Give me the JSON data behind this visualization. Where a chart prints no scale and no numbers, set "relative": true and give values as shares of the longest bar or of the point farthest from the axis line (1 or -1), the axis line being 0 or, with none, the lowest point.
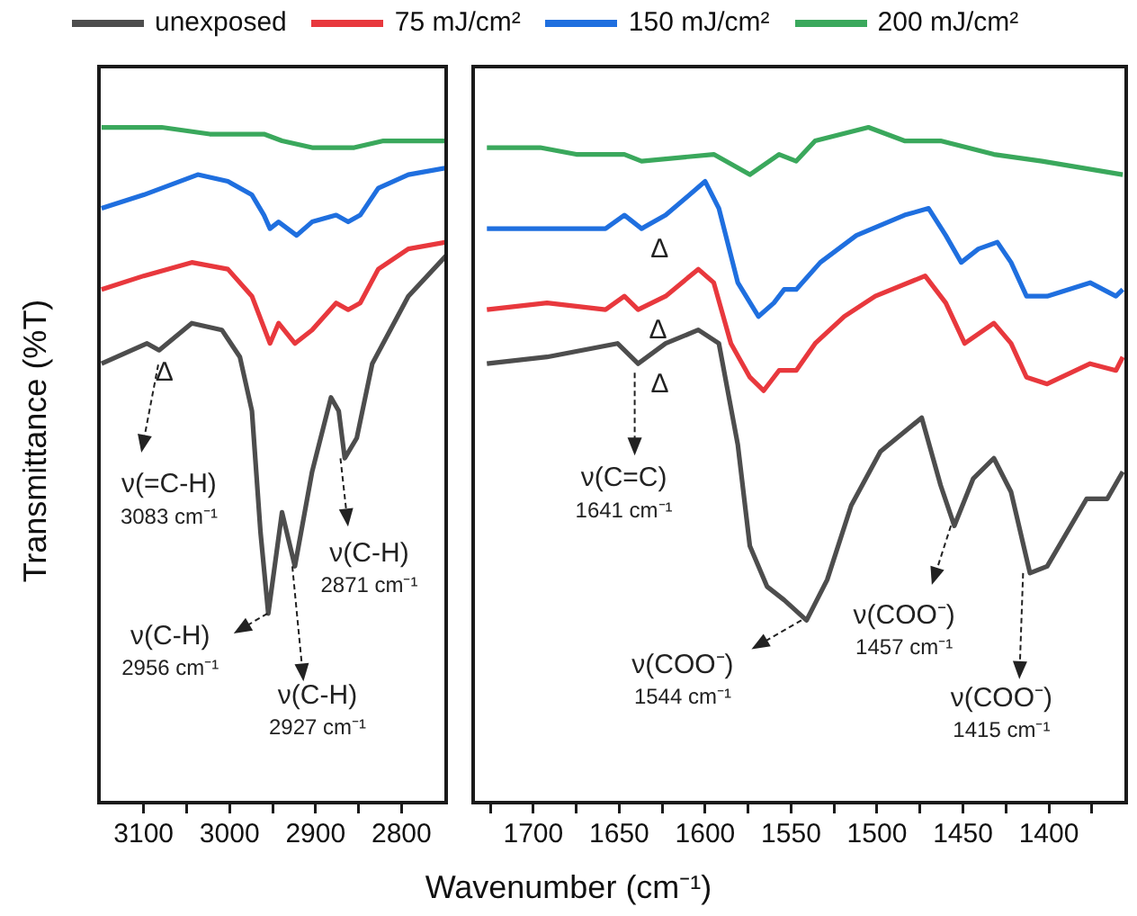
{
  "chart_data": [
    {
      "type": "line",
      "relative": true,
      "ylabel": "Transmittance (%T)",
      "xlabel": "Wavenumber (cm⁻¹)",
      "legend": "top",
      "tick_labels": "x",
      "grid": false,
      "marker": "none",
      "xlim": [
        3152,
        2748
      ],
      "xticks": [
        3100,
        {
          "value": 3050,
          "label": null
        },
        3000,
        {
          "value": 2950,
          "label": null
        },
        2900,
        {
          "value": 2850,
          "label": null
        },
        2800
      ],
      "series": [
        {
          "name": "unexposed",
          "color": "#4d4d4d",
          "x": [
            3149,
            3096,
            3082,
            3044,
            3009,
            2988,
            2974,
            2964,
            2955,
            2939,
            2924,
            2904,
            2882,
            2873,
            2866,
            2852,
            2834,
            2792,
            2748
          ],
          "values": [
            0.65,
            0.68,
            0.67,
            0.71,
            0.7,
            0.66,
            0.58,
            0.4,
            0.28,
            0.43,
            0.35,
            0.49,
            0.6,
            0.58,
            0.51,
            0.54,
            0.65,
            0.75,
            0.81
          ]
        },
        {
          "name": "75 mJ/cm²",
          "color": "#e8383d",
          "x": [
            3149,
            3100,
            3044,
            3002,
            2974,
            2953,
            2943,
            2924,
            2904,
            2876,
            2862,
            2848,
            2827,
            2792,
            2748
          ],
          "values": [
            0.76,
            0.78,
            0.8,
            0.79,
            0.75,
            0.68,
            0.71,
            0.68,
            0.7,
            0.74,
            0.73,
            0.74,
            0.79,
            0.82,
            0.83
          ]
        },
        {
          "name": "150 mJ/cm²",
          "color": "#1f6fdf",
          "x": [
            3149,
            3100,
            3037,
            3002,
            2974,
            2960,
            2953,
            2943,
            2922,
            2904,
            2876,
            2862,
            2848,
            2827,
            2792,
            2748
          ],
          "values": [
            0.88,
            0.9,
            0.93,
            0.92,
            0.9,
            0.87,
            0.85,
            0.86,
            0.84,
            0.86,
            0.87,
            0.86,
            0.87,
            0.91,
            0.93,
            0.94
          ]
        },
        {
          "name": "200 mJ/cm²",
          "color": "#3aa85c",
          "x": [
            3149,
            3079,
            3023,
            2960,
            2939,
            2904,
            2883,
            2855,
            2821,
            2748
          ],
          "values": [
            1.0,
            1.0,
            0.99,
            0.99,
            0.98,
            0.97,
            0.97,
            0.97,
            0.98,
            0.98
          ]
        }
      ],
      "annotations": [
        {
          "text": "Δ",
          "x": 3082,
          "y": 0.67
        },
        {
          "text": "ν(=C-H)\n3083 cm⁻¹",
          "x": 3083,
          "y": 0.67
        },
        {
          "text": "ν(C-H)\n2956 cm⁻¹",
          "x": 2956,
          "y": 0.28
        },
        {
          "text": "ν(C-H)\n2927 cm⁻¹",
          "x": 2927,
          "y": 0.35
        },
        {
          "text": "ν(C-H)\n2871 cm⁻¹",
          "x": 2871,
          "y": 0.51
        }
      ]
    },
    {
      "type": "line",
      "relative": true,
      "tick_labels": "x",
      "grid": false,
      "marker": "none",
      "xlim": [
        1735,
        1355
      ],
      "xticks": [
        {
          "value": 1725,
          "label": null
        },
        1700,
        {
          "value": 1675,
          "label": null
        },
        1650,
        {
          "value": 1625,
          "label": null
        },
        1600,
        {
          "value": 1575,
          "label": null
        },
        1550,
        {
          "value": 1525,
          "label": null
        },
        1500,
        {
          "value": 1475,
          "label": null
        },
        1450,
        {
          "value": 1425,
          "label": null
        },
        1400,
        {
          "value": 1375,
          "label": null
        }
      ],
      "series": [
        {
          "color": "#4d4d4d",
          "x": [
            1727,
            1692,
            1651,
            1639,
            1623,
            1604,
            1592,
            1581,
            1574,
            1564,
            1554,
            1541,
            1529,
            1515,
            1498,
            1474,
            1463,
            1455,
            1444,
            1432,
            1422,
            1411,
            1401,
            1378,
            1366,
            1357
          ],
          "values": [
            0.65,
            0.66,
            0.68,
            0.65,
            0.68,
            0.7,
            0.68,
            0.53,
            0.38,
            0.32,
            0.3,
            0.27,
            0.33,
            0.44,
            0.52,
            0.57,
            0.47,
            0.41,
            0.48,
            0.51,
            0.46,
            0.34,
            0.35,
            0.45,
            0.45,
            0.49
          ]
        },
        {
          "color": "#e8383d",
          "x": [
            1727,
            1692,
            1658,
            1647,
            1639,
            1623,
            1604,
            1595,
            1585,
            1574,
            1566,
            1557,
            1547,
            1536,
            1519,
            1501,
            1472,
            1460,
            1449,
            1432,
            1422,
            1413,
            1401,
            1376,
            1361,
            1357
          ],
          "values": [
            0.73,
            0.74,
            0.73,
            0.75,
            0.73,
            0.75,
            0.79,
            0.77,
            0.68,
            0.63,
            0.61,
            0.64,
            0.64,
            0.68,
            0.72,
            0.75,
            0.78,
            0.74,
            0.68,
            0.71,
            0.68,
            0.63,
            0.62,
            0.65,
            0.64,
            0.66
          ]
        },
        {
          "color": "#1f6fdf",
          "x": [
            1727,
            1692,
            1658,
            1647,
            1637,
            1623,
            1600,
            1592,
            1581,
            1569,
            1560,
            1554,
            1547,
            1533,
            1512,
            1484,
            1470,
            1460,
            1451,
            1441,
            1430,
            1422,
            1413,
            1401,
            1376,
            1361,
            1357
          ],
          "values": [
            0.85,
            0.85,
            0.85,
            0.87,
            0.85,
            0.87,
            0.92,
            0.88,
            0.77,
            0.72,
            0.74,
            0.76,
            0.76,
            0.8,
            0.84,
            0.87,
            0.88,
            0.84,
            0.8,
            0.82,
            0.83,
            0.8,
            0.75,
            0.75,
            0.77,
            0.75,
            0.76
          ]
        },
        {
          "color": "#3aa85c",
          "x": [
            1727,
            1696,
            1675,
            1647,
            1637,
            1595,
            1574,
            1557,
            1547,
            1536,
            1505,
            1484,
            1463,
            1432,
            1404,
            1357
          ],
          "values": [
            0.97,
            0.97,
            0.96,
            0.96,
            0.95,
            0.96,
            0.93,
            0.96,
            0.95,
            0.98,
            1.0,
            0.98,
            0.98,
            0.96,
            0.95,
            0.93
          ]
        }
      ],
      "annotations": [
        {
          "text": "Δ",
          "x": 1639,
          "y": 0.65
        },
        {
          "text": "Δ",
          "x": 1639,
          "y": 0.73
        },
        {
          "text": "Δ",
          "x": 1637,
          "y": 0.85
        },
        {
          "text": "ν(C=C)\n1641 cm⁻¹",
          "x": 1641,
          "y": 0.65
        },
        {
          "text": "ν(COO⁻)\n1544 cm⁻¹",
          "x": 1544,
          "y": 0.27
        },
        {
          "text": "ν(COO⁻)\n1457 cm⁻¹",
          "x": 1457,
          "y": 0.41
        },
        {
          "text": "ν(COO⁻)\n1415 cm⁻¹",
          "x": 1415,
          "y": 0.34
        }
      ]
    }
  ]
}
